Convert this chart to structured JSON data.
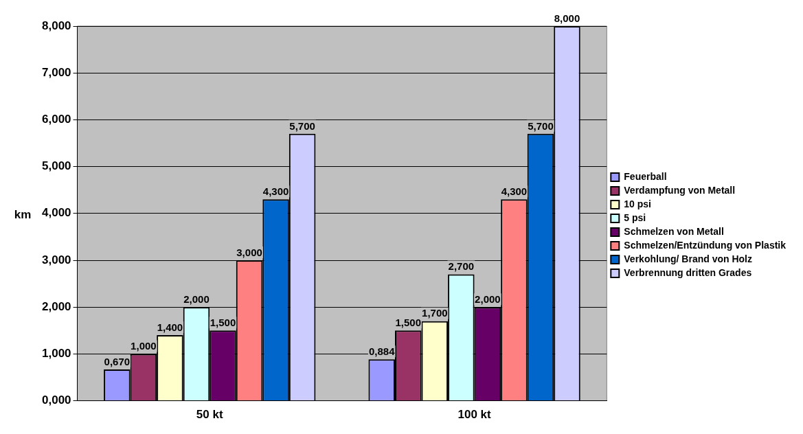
{
  "chart_data": {
    "type": "bar",
    "ylabel": "km",
    "categories": [
      "50 kt",
      "100 kt"
    ],
    "ylim": [
      0,
      8
    ],
    "yticks": [
      {
        "value": 0,
        "label": "0,000"
      },
      {
        "value": 1,
        "label": "1,000"
      },
      {
        "value": 2,
        "label": "2,000"
      },
      {
        "value": 3,
        "label": "3,000"
      },
      {
        "value": 4,
        "label": "4,000"
      },
      {
        "value": 5,
        "label": "5,000"
      },
      {
        "value": 6,
        "label": "6,000"
      },
      {
        "value": 7,
        "label": "7,000"
      },
      {
        "value": 8,
        "label": "8,000"
      }
    ],
    "grid": "y",
    "legend": "right",
    "series": [
      {
        "name": "Feuerball",
        "color": "#9999ff",
        "values": [
          0.67,
          0.884
        ],
        "value_labels": [
          "0,670",
          "0,884"
        ]
      },
      {
        "name": "Verdampfung von Metall",
        "color": "#993366",
        "values": [
          1.0,
          1.5
        ],
        "value_labels": [
          "1,000",
          "1,500"
        ]
      },
      {
        "name": "10 psi",
        "color": "#ffffcc",
        "values": [
          1.4,
          1.7
        ],
        "value_labels": [
          "1,400",
          "1,700"
        ]
      },
      {
        "name": "5 psi",
        "color": "#ccffff",
        "values": [
          2.0,
          2.7
        ],
        "value_labels": [
          "2,000",
          "2,700"
        ]
      },
      {
        "name": "Schmelzen von Metall",
        "color": "#660066",
        "values": [
          1.5,
          2.0
        ],
        "value_labels": [
          "1,500",
          "2,000"
        ]
      },
      {
        "name": "Schmelzen/Entzündung von Plastik",
        "color": "#ff8080",
        "values": [
          3.0,
          4.3
        ],
        "value_labels": [
          "3,000",
          "4,300"
        ]
      },
      {
        "name": "Verkohlung/ Brand von Holz",
        "color": "#0066cc",
        "values": [
          4.3,
          5.7
        ],
        "value_labels": [
          "4,300",
          "5,700"
        ]
      },
      {
        "name": "Verbrennung dritten Grades",
        "color": "#ccccff",
        "values": [
          5.7,
          8.0
        ],
        "value_labels": [
          "5,700",
          "8,000"
        ]
      }
    ]
  }
}
